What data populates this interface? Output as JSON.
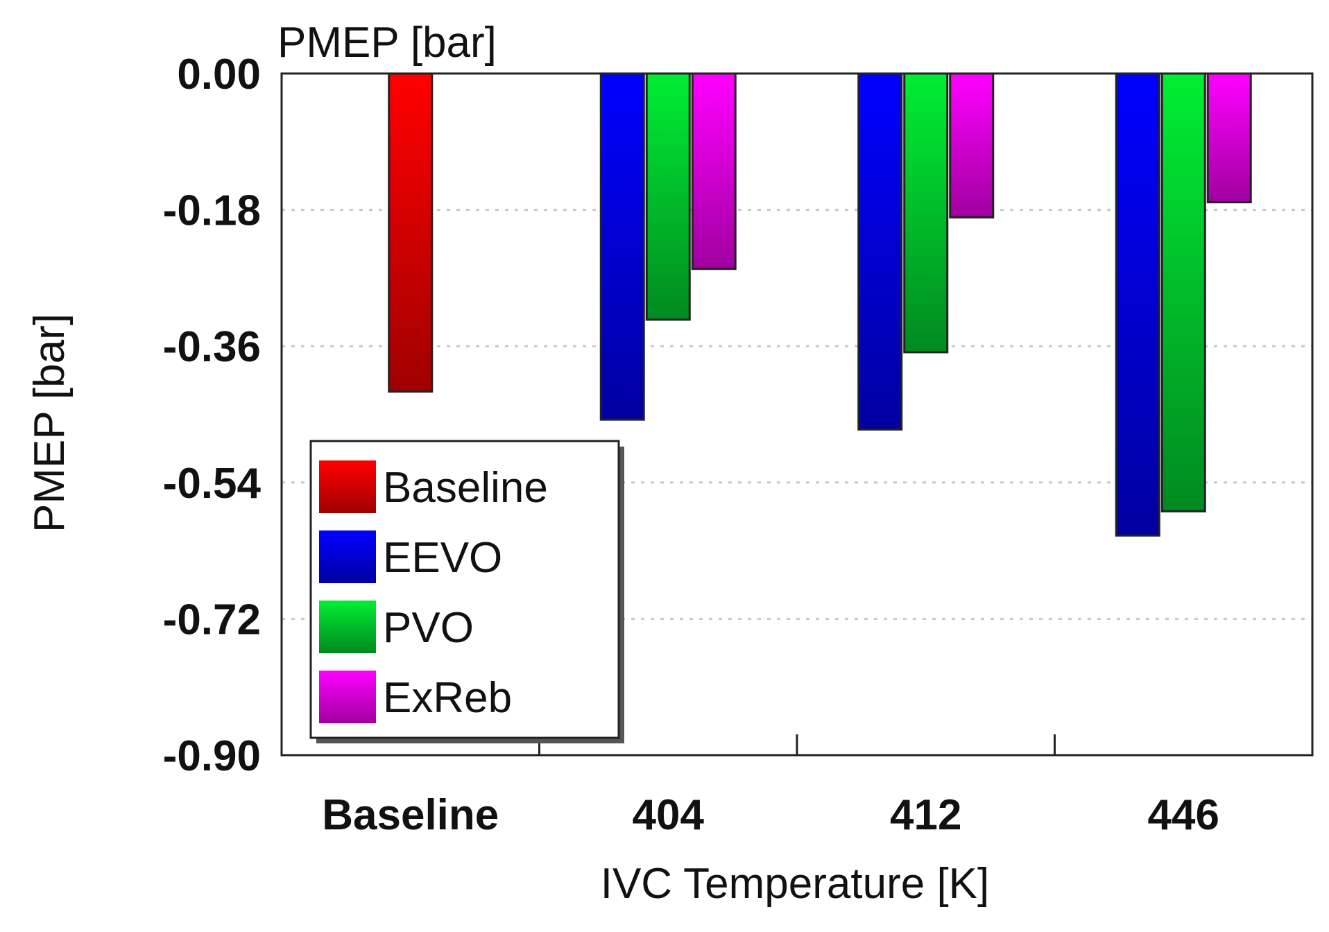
{
  "chart_data": {
    "type": "bar",
    "title": "PMEP [bar]",
    "xlabel": "IVC Temperature [K]",
    "ylabel": "PMEP [bar]",
    "categories": [
      "Baseline",
      "404",
      "412",
      "446"
    ],
    "ylim": [
      -0.9,
      0.0
    ],
    "yticks": [
      0.0,
      -0.18,
      -0.36,
      -0.54,
      -0.72,
      -0.9
    ],
    "ytick_labels": [
      "0.00",
      "-0.18",
      "-0.36",
      "-0.54",
      "-0.72",
      "-0.90"
    ],
    "grid": "horizontal dotted",
    "legend_position": "bottom-left",
    "series": [
      {
        "name": "Baseline",
        "color": "#ff0000",
        "color_dark": "#a00000",
        "values": [
          -0.42,
          null,
          null,
          null
        ]
      },
      {
        "name": "EEVO",
        "color": "#0000ff",
        "color_dark": "#0000a0",
        "values": [
          null,
          -0.457,
          -0.47,
          -0.61
        ]
      },
      {
        "name": "PVO",
        "color": "#00ee33",
        "color_dark": "#008a20",
        "values": [
          null,
          -0.325,
          -0.368,
          -0.578
        ]
      },
      {
        "name": "ExReb",
        "color": "#ff00ff",
        "color_dark": "#a000a0",
        "values": [
          null,
          -0.258,
          -0.19,
          -0.17
        ]
      }
    ]
  }
}
